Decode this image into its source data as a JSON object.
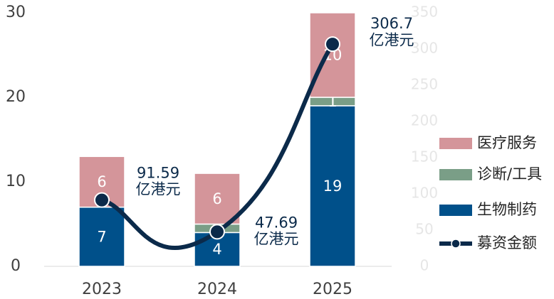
{
  "chart_data": {
    "type": "bar",
    "categories": [
      "2023",
      "2024",
      "2025"
    ],
    "series": [
      {
        "name": "生物制药",
        "color": "#00508a",
        "values": [
          7,
          4,
          19
        ]
      },
      {
        "name": "诊断/工具",
        "color": "#7a9e87",
        "values": [
          0,
          1,
          1
        ]
      },
      {
        "name": "医疗服务",
        "color": "#d4959a",
        "values": [
          6,
          6,
          10
        ]
      },
      {
        "name": "募资金额",
        "type": "line",
        "axis": "y2",
        "color": "#0b2a4a",
        "values": [
          91.59,
          47.69,
          306.7
        ],
        "value_labels": [
          "91.59\n亿港元",
          "47.69\n亿港元",
          "306.7\n亿港元"
        ]
      }
    ],
    "stacked": true,
    "ylim": [
      0,
      30
    ],
    "yticks": [
      0,
      10,
      20,
      30
    ],
    "y2lim": [
      0,
      350
    ],
    "y2ticks": [
      0,
      50,
      100,
      150,
      200,
      250,
      300,
      350
    ],
    "legend": "right"
  }
}
